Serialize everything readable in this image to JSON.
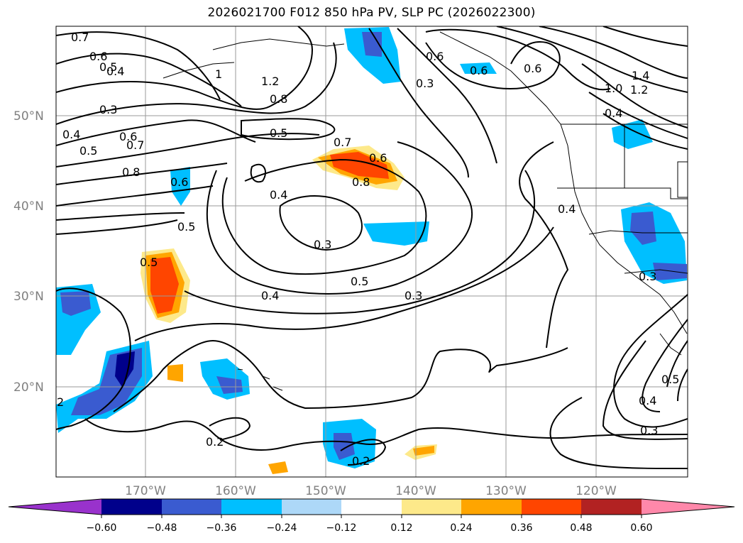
{
  "title": "2026021700 F012 850 hPa PV, SLP PC (2026022300)",
  "lat_labels": [
    "50°N",
    "40°N",
    "30°N",
    "20°N"
  ],
  "lon_labels": [
    "170°W",
    "160°W",
    "150°W",
    "140°W",
    "130°W",
    "120°W"
  ],
  "colorbar": {
    "ticks": [
      "−0.60",
      "−0.48",
      "−0.36",
      "−0.24",
      "−0.12",
      "0.12",
      "0.24",
      "0.36",
      "0.48",
      "0.60"
    ],
    "colors": [
      "#9932cc",
      "#00008b",
      "#3a5bd0",
      "#00bfff",
      "#add8f8",
      "#ffffff",
      "#fde98a",
      "#ffa500",
      "#ff4500",
      "#b22222",
      "#ff88aa"
    ]
  },
  "contour_labels": [
    "0.7",
    "0.6",
    "0.5",
    "0.4",
    "0.3",
    "1",
    "1.2",
    "0.8",
    "0.5",
    "0.4",
    "0.5",
    "0.6",
    "0.7",
    "0.8",
    "0.6",
    "0.5",
    "0.7",
    "0.6",
    "0.8",
    "0.4",
    "0.3",
    "0.5",
    "0.4",
    "0.3",
    "0.5",
    "0.2",
    "0.2",
    "0.6",
    "0.3",
    "0.6",
    "0.6",
    "1.4",
    "1.2",
    "1.0",
    "0.4",
    "0.4",
    "0.3",
    "0.5",
    "0.4",
    "0.3",
    "2"
  ]
}
